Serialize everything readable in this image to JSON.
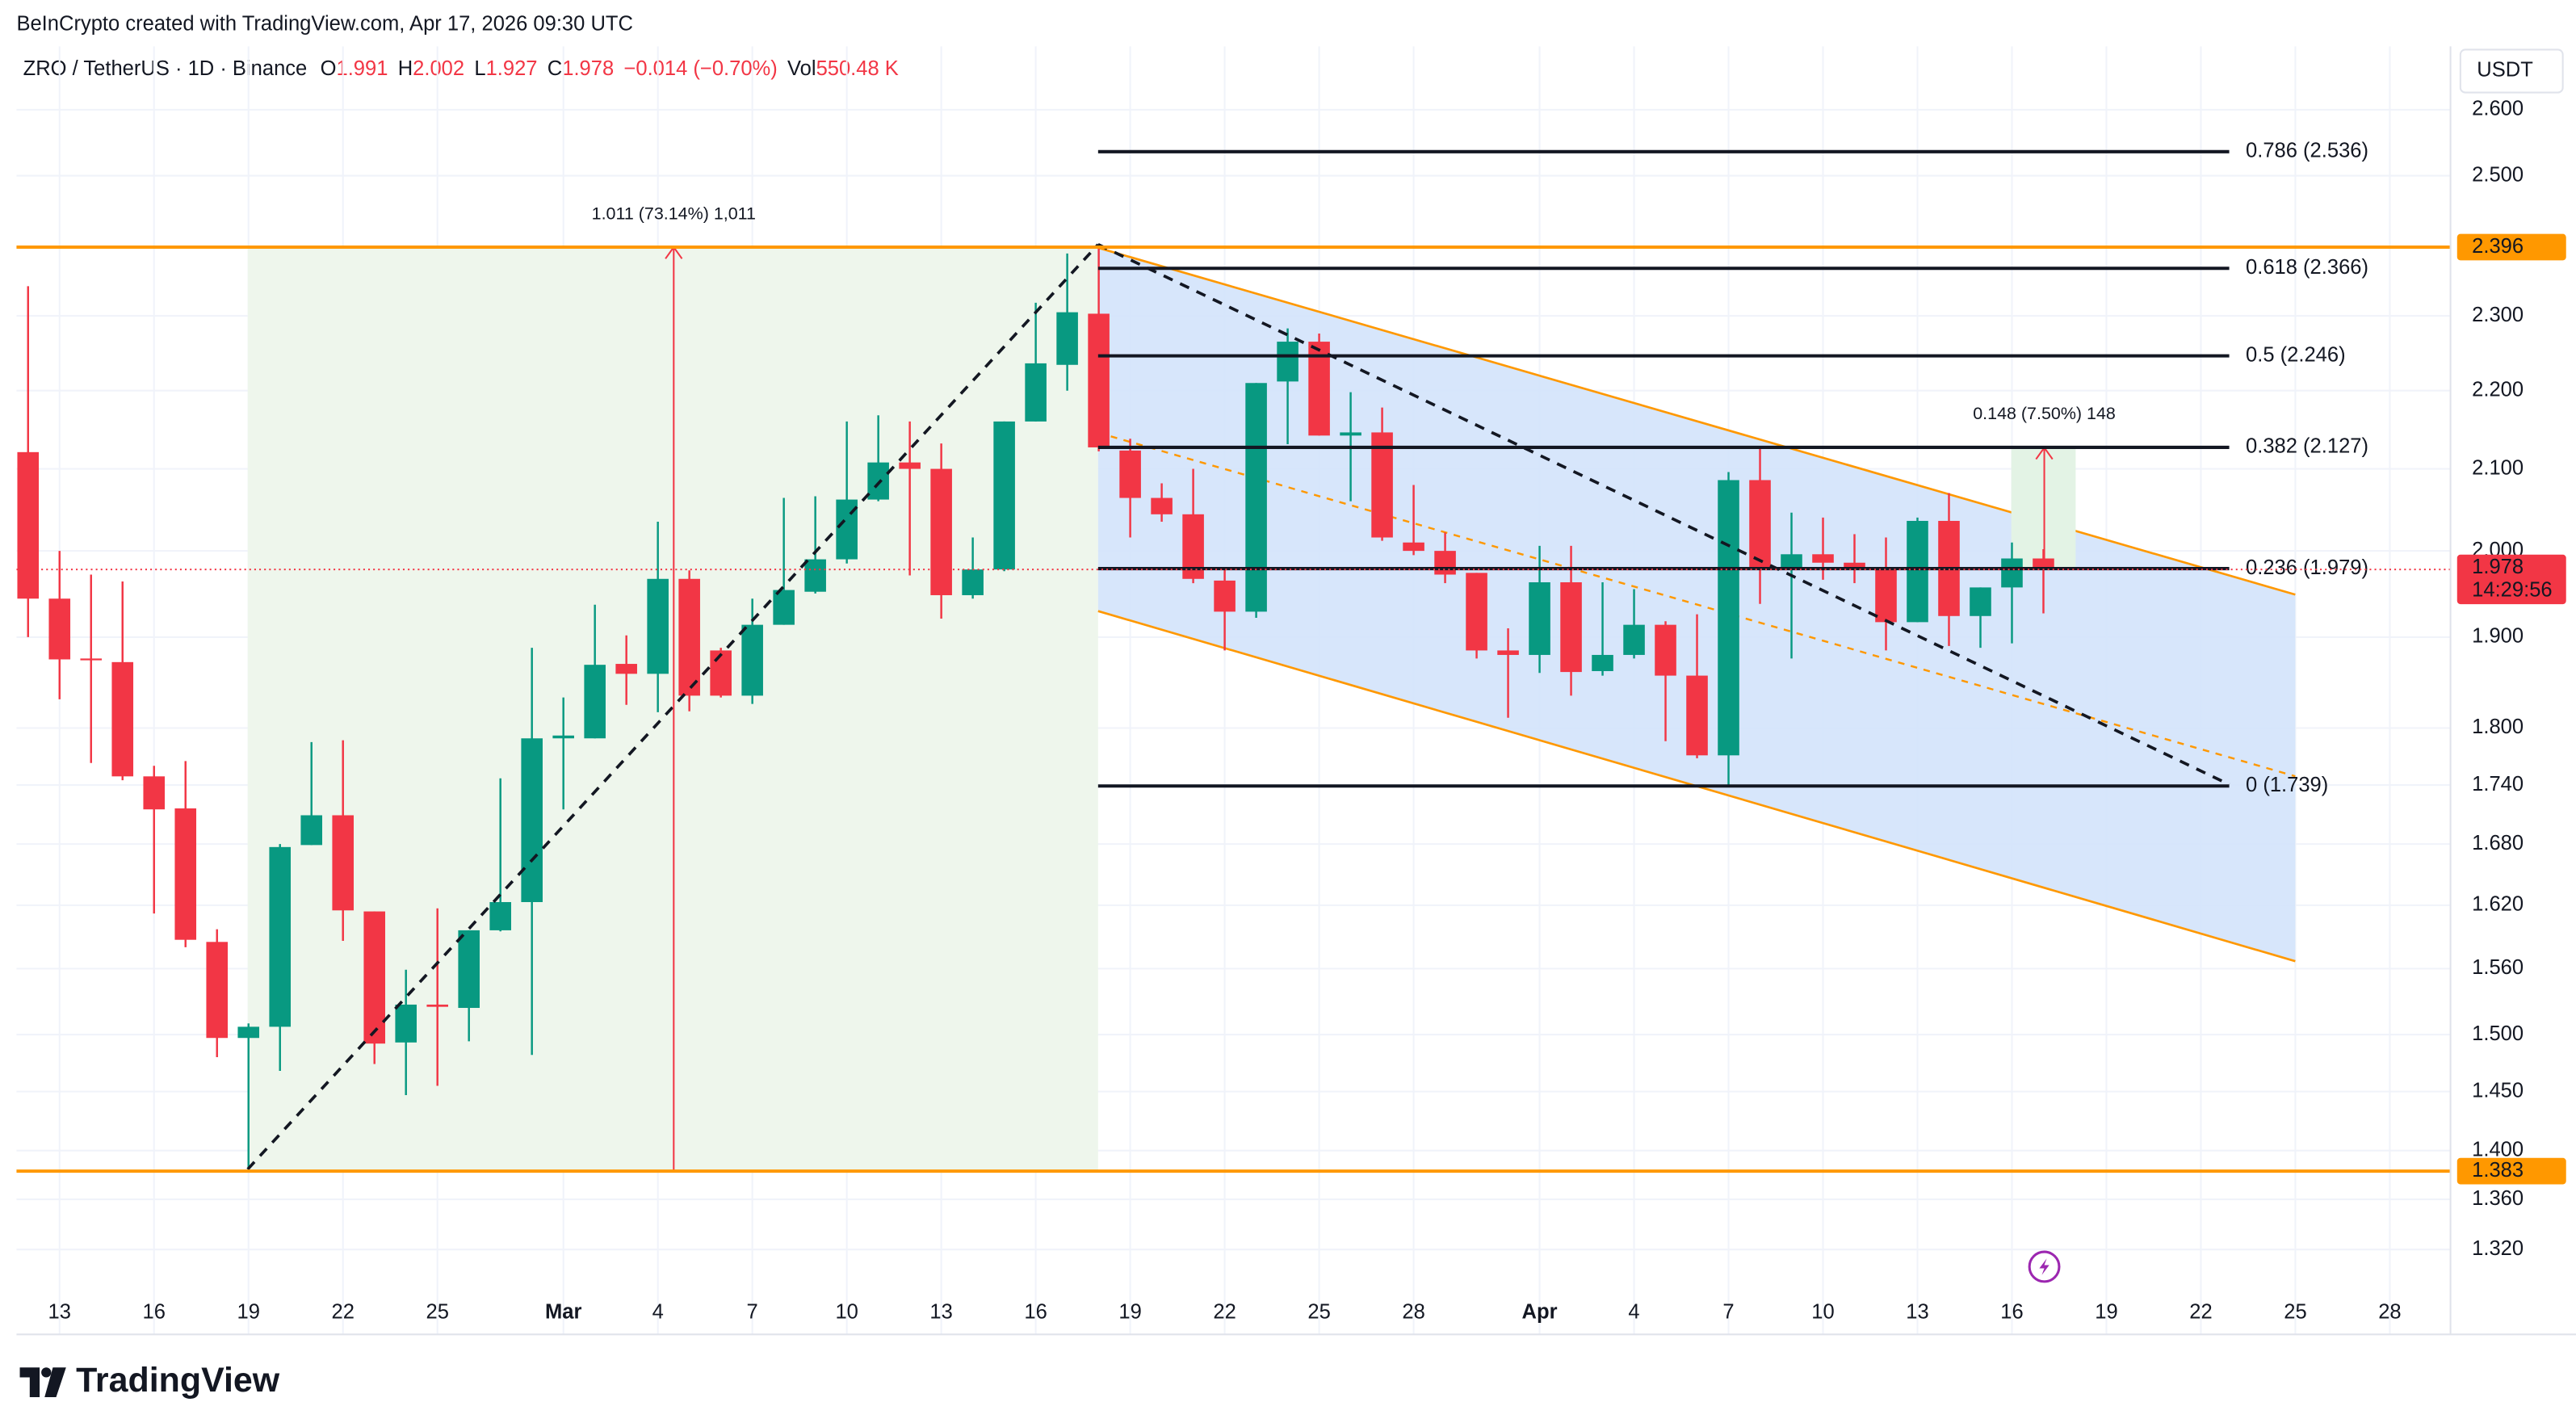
{
  "header": {
    "attribution": "BeInCrypto created with TradingView.com, Apr 17, 2026 09:30 UTC",
    "symbol": "ZRO / TetherUS · 1D · Binance",
    "ohlc": [
      {
        "label": "O",
        "value": "1.991"
      },
      {
        "label": "H",
        "value": "2.002"
      },
      {
        "label": "L",
        "value": "1.927"
      },
      {
        "label": "C",
        "value": "1.978"
      }
    ],
    "change": "−0.014 (−0.70%)",
    "volume_label": "Vol",
    "volume": "550.48 K"
  },
  "chart_data": {
    "type": "candlestick",
    "y_axis_label": "USDT",
    "log_scale": true,
    "grid": true,
    "up_color": "#089981",
    "down_color": "#f23645",
    "x": [
      "2026-02-12",
      "2026-02-13",
      "2026-02-14",
      "2026-02-15",
      "2026-02-16",
      "2026-02-17",
      "2026-02-18",
      "2026-02-19",
      "2026-02-20",
      "2026-02-21",
      "2026-02-22",
      "2026-02-23",
      "2026-02-24",
      "2026-02-25",
      "2026-02-26",
      "2026-02-27",
      "2026-02-28",
      "2026-03-01",
      "2026-03-02",
      "2026-03-03",
      "2026-03-04",
      "2026-03-05",
      "2026-03-06",
      "2026-03-07",
      "2026-03-08",
      "2026-03-09",
      "2026-03-10",
      "2026-03-11",
      "2026-03-12",
      "2026-03-13",
      "2026-03-14",
      "2026-03-15",
      "2026-03-16",
      "2026-03-17",
      "2026-03-18",
      "2026-03-19",
      "2026-03-20",
      "2026-03-21",
      "2026-03-22",
      "2026-03-23",
      "2026-03-24",
      "2026-03-25",
      "2026-03-26",
      "2026-03-27",
      "2026-03-28",
      "2026-03-29",
      "2026-03-30",
      "2026-03-31",
      "2026-04-01",
      "2026-04-02",
      "2026-04-03",
      "2026-04-04",
      "2026-04-05",
      "2026-04-06",
      "2026-04-07",
      "2026-04-08",
      "2026-04-09",
      "2026-04-10",
      "2026-04-11",
      "2026-04-12",
      "2026-04-13",
      "2026-04-14",
      "2026-04-15",
      "2026-04-16",
      "2026-04-17"
    ],
    "open": [
      2.121,
      1.944,
      1.876,
      1.872,
      1.749,
      1.716,
      1.585,
      1.497,
      1.507,
      1.679,
      1.709,
      1.614,
      1.493,
      1.527,
      1.524,
      1.596,
      1.623,
      1.789,
      1.789,
      1.87,
      1.859,
      1.967,
      1.885,
      1.835,
      1.914,
      1.952,
      1.99,
      2.062,
      2.108,
      2.1,
      1.948,
      1.978,
      2.16,
      2.234,
      2.303,
      2.123,
      2.064,
      2.044,
      1.965,
      1.929,
      2.212,
      2.265,
      2.142,
      2.146,
      2.01,
      2.0,
      1.974,
      1.885,
      1.88,
      1.963,
      1.862,
      1.88,
      1.914,
      1.857,
      1.771,
      2.086,
      1.98,
      1.996,
      1.986,
      1.98,
      1.917,
      2.036,
      1.924,
      1.957,
      1.991
    ],
    "high": [
      2.341,
      2.0,
      1.972,
      1.964,
      1.76,
      1.765,
      1.597,
      1.51,
      1.68,
      1.785,
      1.787,
      1.614,
      1.559,
      1.617,
      1.596,
      1.747,
      1.888,
      1.833,
      1.937,
      1.902,
      2.035,
      1.977,
      1.888,
      1.944,
      2.064,
      2.066,
      2.16,
      2.168,
      2.16,
      2.132,
      2.016,
      2.16,
      2.318,
      2.387,
      2.396,
      2.138,
      2.082,
      2.1,
      1.98,
      2.21,
      2.283,
      2.276,
      2.198,
      2.178,
      2.08,
      2.022,
      1.974,
      1.91,
      2.006,
      2.006,
      1.963,
      1.955,
      1.918,
      1.926,
      2.096,
      2.127,
      2.046,
      2.04,
      2.02,
      2.016,
      2.04,
      2.07,
      1.957,
      2.01,
      2.002
    ],
    "low": [
      1.9,
      1.831,
      1.763,
      1.745,
      1.612,
      1.58,
      1.48,
      1.385,
      1.468,
      1.679,
      1.586,
      1.474,
      1.447,
      1.455,
      1.494,
      1.595,
      1.482,
      1.715,
      1.789,
      1.825,
      1.817,
      1.818,
      1.833,
      1.826,
      1.914,
      1.95,
      1.985,
      2.06,
      1.971,
      1.921,
      1.944,
      1.976,
      2.16,
      2.2,
      2.122,
      2.016,
      2.035,
      1.962,
      1.885,
      1.922,
      2.131,
      2.142,
      2.06,
      2.012,
      1.995,
      1.962,
      1.876,
      1.811,
      1.86,
      1.835,
      1.857,
      1.876,
      1.786,
      1.768,
      1.739,
      1.938,
      1.876,
      1.966,
      1.962,
      1.885,
      1.917,
      1.89,
      1.888,
      1.893,
      1.927
    ],
    "close": [
      1.944,
      1.875,
      1.874,
      1.749,
      1.715,
      1.587,
      1.497,
      1.507,
      1.677,
      1.709,
      1.615,
      1.492,
      1.527,
      1.525,
      1.596,
      1.623,
      1.789,
      1.792,
      1.869,
      1.859,
      1.967,
      1.835,
      1.835,
      1.914,
      1.954,
      1.99,
      2.062,
      2.108,
      2.1,
      1.948,
      1.978,
      2.16,
      2.236,
      2.305,
      2.127,
      2.064,
      2.044,
      1.967,
      1.929,
      2.21,
      2.265,
      2.142,
      2.146,
      2.016,
      2.0,
      1.972,
      1.885,
      1.88,
      1.963,
      1.861,
      1.88,
      1.914,
      1.857,
      1.771,
      2.086,
      1.98,
      1.996,
      1.986,
      1.98,
      1.917,
      2.036,
      1.924,
      1.957,
      1.991,
      1.978
    ],
    "ylim": [
      1.29,
      2.7
    ],
    "yticks": [
      {
        "value": 2.6,
        "label": "2.600"
      },
      {
        "value": 2.5,
        "label": "2.500"
      },
      {
        "value": 2.3,
        "label": "2.300"
      },
      {
        "value": 2.2,
        "label": "2.200"
      },
      {
        "value": 2.1,
        "label": "2.100"
      },
      {
        "value": 2.0,
        "label": "2.000"
      },
      {
        "value": 1.9,
        "label": "1.900"
      },
      {
        "value": 1.8,
        "label": "1.800"
      },
      {
        "value": 1.74,
        "label": "1.740"
      },
      {
        "value": 1.68,
        "label": "1.680"
      },
      {
        "value": 1.62,
        "label": "1.620"
      },
      {
        "value": 1.56,
        "label": "1.560"
      },
      {
        "value": 1.5,
        "label": "1.500"
      },
      {
        "value": 1.45,
        "label": "1.450"
      },
      {
        "value": 1.4,
        "label": "1.400"
      },
      {
        "value": 1.36,
        "label": "1.360"
      },
      {
        "value": 1.32,
        "label": "1.320"
      }
    ],
    "xticks": [
      {
        "value": "2026-02-13",
        "label": "13"
      },
      {
        "value": "2026-02-16",
        "label": "16"
      },
      {
        "value": "2026-02-19",
        "label": "19"
      },
      {
        "value": "2026-02-22",
        "label": "22"
      },
      {
        "value": "2026-02-25",
        "label": "25"
      },
      {
        "value": "2026-03-01",
        "label": "Mar"
      },
      {
        "value": "2026-03-04",
        "label": "4"
      },
      {
        "value": "2026-03-07",
        "label": "7"
      },
      {
        "value": "2026-03-10",
        "label": "10"
      },
      {
        "value": "2026-03-13",
        "label": "13"
      },
      {
        "value": "2026-03-16",
        "label": "16"
      },
      {
        "value": "2026-03-19",
        "label": "19"
      },
      {
        "value": "2026-03-22",
        "label": "22"
      },
      {
        "value": "2026-03-25",
        "label": "25"
      },
      {
        "value": "2026-03-28",
        "label": "28"
      },
      {
        "value": "2026-04-01",
        "label": "Apr"
      },
      {
        "value": "2026-04-04",
        "label": "4"
      },
      {
        "value": "2026-04-07",
        "label": "7"
      },
      {
        "value": "2026-04-10",
        "label": "10"
      },
      {
        "value": "2026-04-13",
        "label": "13"
      },
      {
        "value": "2026-04-16",
        "label": "16"
      },
      {
        "value": "2026-04-19",
        "label": "19"
      },
      {
        "value": "2026-04-22",
        "label": "22"
      },
      {
        "value": "2026-04-25",
        "label": "25"
      },
      {
        "value": "2026-04-28",
        "label": "28"
      }
    ],
    "price_lines": [
      {
        "value": 2.396,
        "color": "#ff9800"
      },
      {
        "value": 1.383,
        "color": "#ff9800"
      }
    ],
    "last_price": {
      "value": 1.978,
      "countdown": "14:29:56",
      "color": "#f23645"
    },
    "fib_levels": [
      {
        "price": 2.536,
        "label": "0.786 (2.536)"
      },
      {
        "price": 2.366,
        "label": "0.618 (2.366)"
      },
      {
        "price": 2.246,
        "label": "0.5 (2.246)"
      },
      {
        "price": 2.127,
        "label": "0.382 (2.127)"
      },
      {
        "price": 1.979,
        "label": "0.236 (1.979)"
      },
      {
        "price": 1.739,
        "label": "0 (1.739)"
      }
    ],
    "annotations": [
      {
        "text": "1.011 (73.14%) 1,011"
      },
      {
        "text": "0.148 (7.50%) 148"
      }
    ]
  },
  "footer": {
    "brand": "TradingView"
  }
}
